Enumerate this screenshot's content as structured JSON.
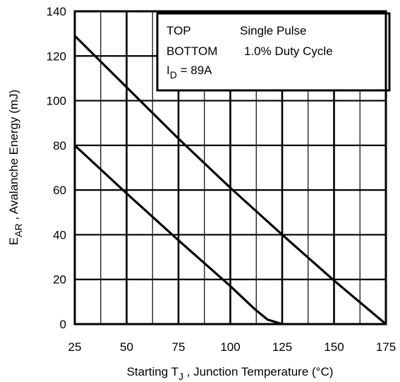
{
  "chart_data": {
    "type": "line",
    "title": "",
    "xlabel": {
      "main": "Starting T",
      "sub": "J",
      "rest": " , Junction Temperature (°C)"
    },
    "ylabel": {
      "main": "E",
      "sub": "AR",
      "rest": " , Avalanche Energy (mJ)"
    },
    "xlim": [
      25,
      175
    ],
    "ylim": [
      0,
      140
    ],
    "x_ticks": [
      "25",
      "50",
      "75",
      "100",
      "125",
      "150",
      "175"
    ],
    "y_ticks": [
      "0",
      "20",
      "40",
      "60",
      "80",
      "100",
      "120",
      "140"
    ],
    "grid": true,
    "legend_position": "top-right",
    "legend": {
      "line1": {
        "left": "TOP",
        "right": "Single Pulse"
      },
      "line2": {
        "left": "BOTTOM",
        "right": "1.0% Duty Cycle"
      },
      "line3": {
        "main": "I",
        "sub": "D",
        "rest": " = 89A"
      }
    },
    "series": [
      {
        "name": "Single Pulse",
        "points": [
          [
            25,
            129
          ],
          [
            50,
            106
          ],
          [
            75,
            83
          ],
          [
            100,
            61
          ],
          [
            125,
            40
          ],
          [
            150,
            19.5
          ],
          [
            175,
            0
          ]
        ]
      },
      {
        "name": "1.0% Duty Cycle",
        "points": [
          [
            25,
            80
          ],
          [
            50,
            58.5
          ],
          [
            75,
            37.5
          ],
          [
            100,
            17
          ],
          [
            112,
            6.5
          ],
          [
            118,
            2
          ],
          [
            125,
            0
          ]
        ]
      }
    ],
    "line_color": "#000000"
  }
}
